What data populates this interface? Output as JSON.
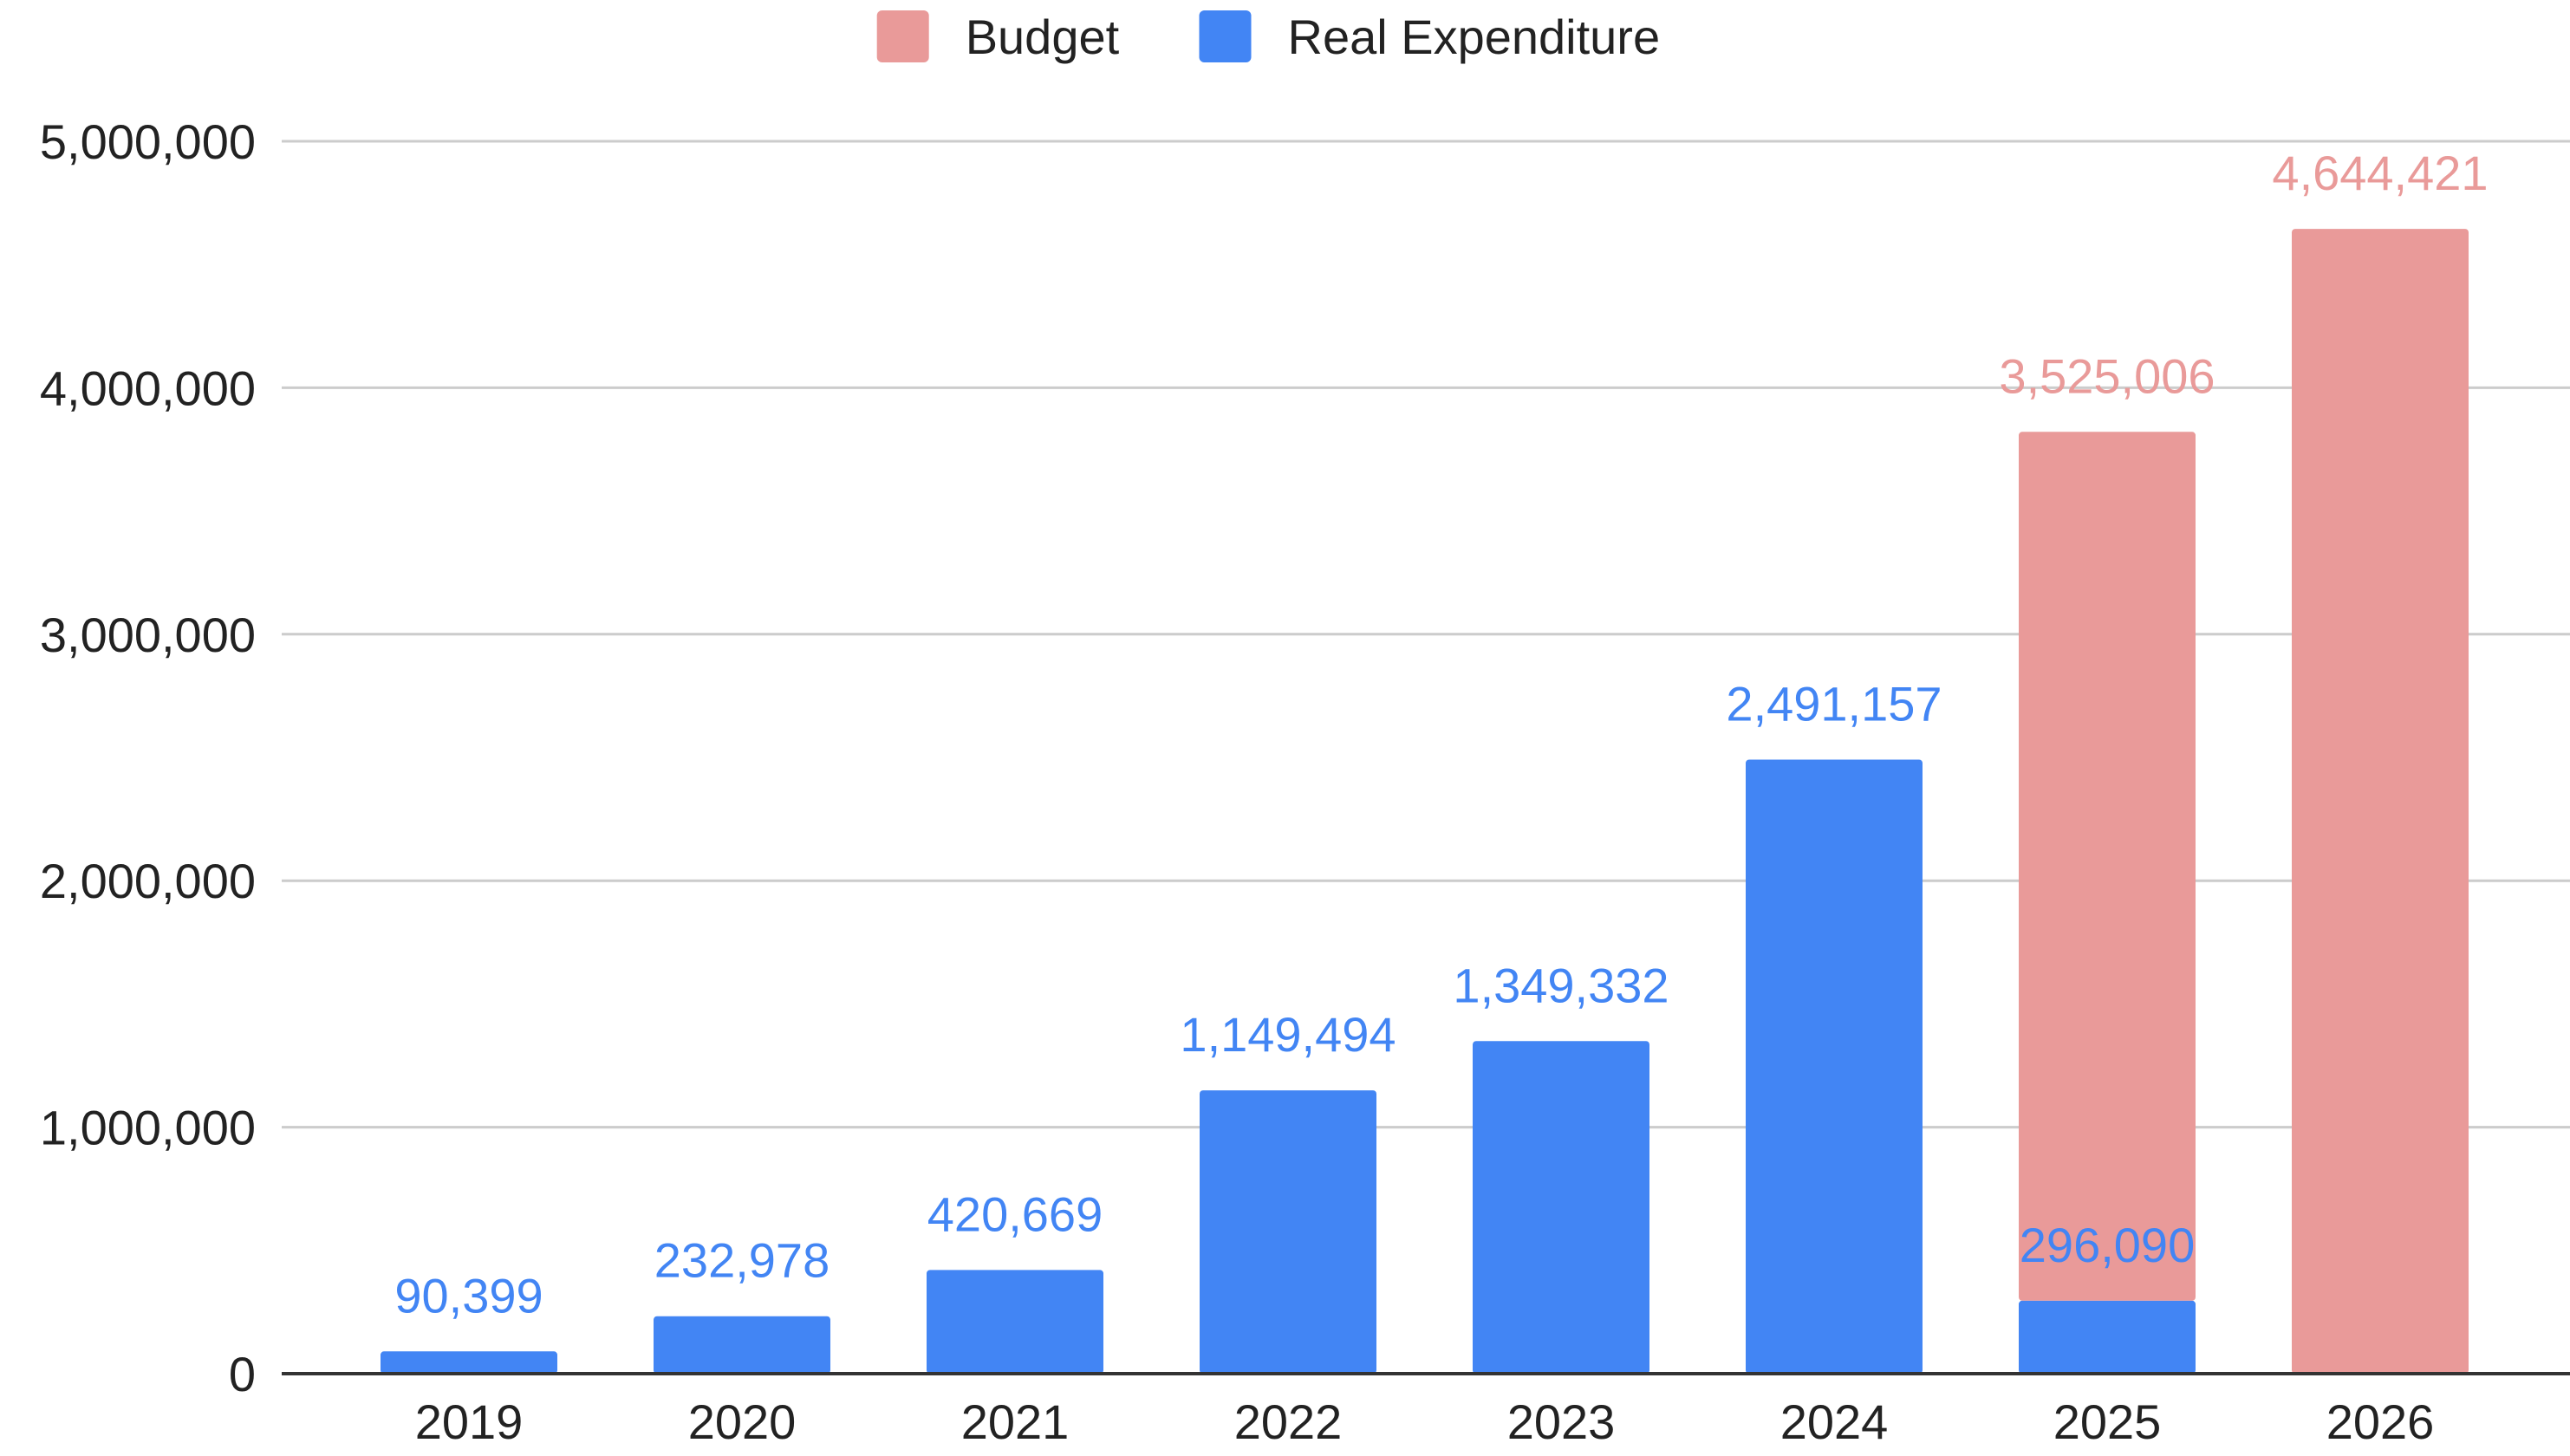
{
  "chart_data": {
    "type": "bar",
    "stacked": true,
    "categories": [
      "2019",
      "2020",
      "2021",
      "2022",
      "2023",
      "2024",
      "2025",
      "2026"
    ],
    "series": [
      {
        "name": "Real Expenditure",
        "color": "#4285f4",
        "values": [
          90399,
          232978,
          420669,
          1149494,
          1349332,
          2491157,
          296090,
          0
        ],
        "labels": [
          "90,399",
          "232,978",
          "420,669",
          "1,149,494",
          "1,349,332",
          "2,491,157",
          "296,090",
          ""
        ]
      },
      {
        "name": "Budget",
        "color": "#e99a99",
        "values": [
          0,
          0,
          0,
          0,
          0,
          0,
          3525006,
          4644421
        ],
        "labels": [
          "",
          "",
          "",
          "",
          "",
          "",
          "3,525,006",
          "4,644,421"
        ]
      }
    ],
    "legend": {
      "position": "top",
      "order": [
        "Budget",
        "Real Expenditure"
      ]
    },
    "yticks": [
      0,
      1000000,
      2000000,
      3000000,
      4000000,
      5000000
    ],
    "ytick_labels": [
      "0",
      "1,000,000",
      "2,000,000",
      "3,000,000",
      "4,000,000",
      "5,000,000"
    ],
    "ylim": [
      0,
      5000000
    ],
    "grid": true,
    "title": "",
    "xlabel": "",
    "ylabel": "",
    "colors": {
      "grid": "#cccccc",
      "axis": "#333333",
      "tick_text": "#222222"
    }
  }
}
